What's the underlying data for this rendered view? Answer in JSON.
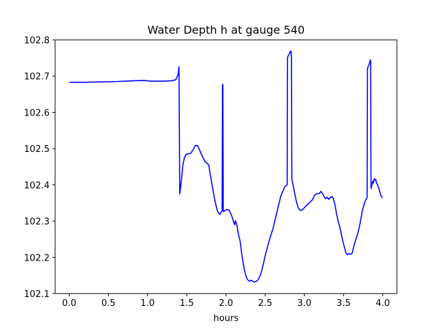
{
  "chart_data": {
    "type": "line",
    "title": "Water Depth h at gauge 540",
    "xlabel": "hours",
    "ylabel": "",
    "xlim": [
      -0.18,
      4.18
    ],
    "ylim": [
      102.1,
      102.8
    ],
    "xticks": [
      0.0,
      0.5,
      1.0,
      1.5,
      2.0,
      2.5,
      3.0,
      3.5,
      4.0
    ],
    "xtick_labels": [
      "0.0",
      "0.5",
      "1.0",
      "1.5",
      "2.0",
      "2.5",
      "3.0",
      "3.5",
      "4.0"
    ],
    "yticks": [
      102.1,
      102.2,
      102.3,
      102.4,
      102.5,
      102.6,
      102.7,
      102.8
    ],
    "ytick_labels": [
      "102.1",
      "102.2",
      "102.3",
      "102.4",
      "102.5",
      "102.6",
      "102.7",
      "102.8"
    ],
    "grid": false,
    "series": [
      {
        "color": "#0000ff",
        "x": [
          0.0,
          0.2,
          0.4,
          0.6,
          0.8,
          0.95,
          1.05,
          1.2,
          1.3,
          1.36,
          1.39,
          1.4,
          1.405,
          1.41,
          1.43,
          1.45,
          1.47,
          1.49,
          1.51,
          1.55,
          1.58,
          1.61,
          1.64,
          1.67,
          1.7,
          1.73,
          1.76,
          1.78,
          1.8,
          1.83,
          1.86,
          1.89,
          1.92,
          1.94,
          1.95,
          1.955,
          1.96,
          1.965,
          1.97,
          1.98,
          2.0,
          2.02,
          2.04,
          2.06,
          2.08,
          2.1,
          2.11,
          2.12,
          2.14,
          2.16,
          2.18,
          2.2,
          2.22,
          2.24,
          2.26,
          2.28,
          2.3,
          2.32,
          2.34,
          2.36,
          2.38,
          2.4,
          2.42,
          2.44,
          2.46,
          2.48,
          2.5,
          2.55,
          2.6,
          2.65,
          2.7,
          2.75,
          2.78,
          2.785,
          2.79,
          2.81,
          2.82,
          2.83,
          2.835,
          2.84,
          2.86,
          2.88,
          2.9,
          2.92,
          2.95,
          2.98,
          3.0,
          3.02,
          3.05,
          3.07,
          3.1,
          3.13,
          3.16,
          3.19,
          3.21,
          3.23,
          3.25,
          3.27,
          3.29,
          3.31,
          3.33,
          3.35,
          3.37,
          3.39,
          3.41,
          3.43,
          3.45,
          3.47,
          3.49,
          3.51,
          3.53,
          3.55,
          3.57,
          3.59,
          3.61,
          3.63,
          3.65,
          3.68,
          3.71,
          3.74,
          3.77,
          3.79,
          3.8,
          3.805,
          3.81,
          3.83,
          3.84,
          3.845,
          3.85,
          3.86,
          3.87,
          3.88,
          3.89,
          3.9,
          3.91,
          3.92,
          3.93,
          3.95,
          3.97,
          3.98,
          4.0
        ],
        "y": [
          102.683,
          102.683,
          102.684,
          102.685,
          102.687,
          102.688,
          102.686,
          102.686,
          102.687,
          102.69,
          102.705,
          102.726,
          102.55,
          102.375,
          102.41,
          102.455,
          102.475,
          102.484,
          102.485,
          102.487,
          102.497,
          102.509,
          102.508,
          102.492,
          102.478,
          102.465,
          102.459,
          102.455,
          102.428,
          102.39,
          102.355,
          102.328,
          102.318,
          102.325,
          102.327,
          102.675,
          102.677,
          102.33,
          102.326,
          102.328,
          102.331,
          102.332,
          102.33,
          102.321,
          102.31,
          102.295,
          102.29,
          102.301,
          102.287,
          102.262,
          102.245,
          102.21,
          102.183,
          102.16,
          102.145,
          102.137,
          102.134,
          102.137,
          102.134,
          102.132,
          102.133,
          102.136,
          102.142,
          102.152,
          102.167,
          102.185,
          102.205,
          102.245,
          102.28,
          102.325,
          102.37,
          102.395,
          102.4,
          102.75,
          102.755,
          102.762,
          102.768,
          102.769,
          102.75,
          102.415,
          102.395,
          102.372,
          102.352,
          102.337,
          102.329,
          102.332,
          102.337,
          102.342,
          102.347,
          102.352,
          102.358,
          102.371,
          102.376,
          102.376,
          102.382,
          102.376,
          102.368,
          102.362,
          102.366,
          102.36,
          102.365,
          102.368,
          102.362,
          102.345,
          102.32,
          102.3,
          102.285,
          102.265,
          102.245,
          102.228,
          102.212,
          102.207,
          102.21,
          102.208,
          102.212,
          102.23,
          102.245,
          102.265,
          102.293,
          102.33,
          102.352,
          102.362,
          102.365,
          102.72,
          102.725,
          102.735,
          102.745,
          102.74,
          102.39,
          102.398,
          102.41,
          102.405,
          102.417,
          102.413,
          102.415,
          102.405,
          102.402,
          102.39,
          102.375,
          102.368,
          102.365
        ]
      }
    ]
  }
}
